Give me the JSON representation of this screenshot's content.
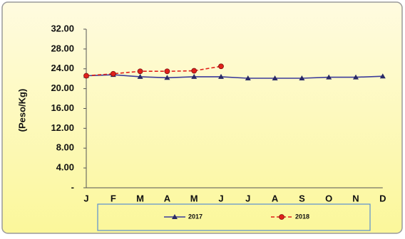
{
  "chart_data": {
    "type": "line",
    "y_label": "(Peso/Kg)",
    "categories": [
      "J",
      "F",
      "M",
      "A",
      "M",
      "J",
      "J",
      "A",
      "S",
      "O",
      "N",
      "D"
    ],
    "series": [
      {
        "name": "2017",
        "color": "#3b3b9a",
        "marker": "triangle",
        "dashed": false,
        "values": [
          22.6,
          22.8,
          22.4,
          22.2,
          22.4,
          22.4,
          22.1,
          22.1,
          22.1,
          22.3,
          22.3,
          22.5
        ]
      },
      {
        "name": "2018",
        "color": "#e0201b",
        "marker": "circle",
        "dashed": true,
        "values": [
          22.6,
          23.0,
          23.5,
          23.5,
          23.6,
          24.5,
          null,
          null,
          null,
          null,
          null,
          null
        ]
      }
    ],
    "ylim": [
      0,
      32
    ],
    "yticks": [
      {
        "value": 0,
        "label": "-"
      },
      {
        "value": 4,
        "label": "4.00"
      },
      {
        "value": 8,
        "label": "8.00"
      },
      {
        "value": 12,
        "label": "12.00"
      },
      {
        "value": 16,
        "label": "16.00"
      },
      {
        "value": 20,
        "label": "20.00"
      },
      {
        "value": 24,
        "label": "24.00"
      },
      {
        "value": 28,
        "label": "28.00"
      },
      {
        "value": 32,
        "label": "32.00"
      }
    ],
    "legend": "bottom"
  }
}
